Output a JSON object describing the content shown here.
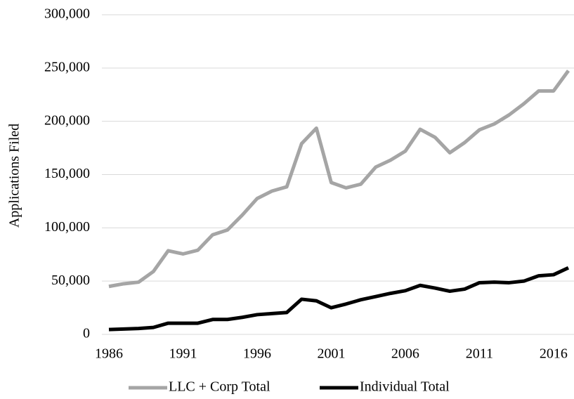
{
  "chart_data": {
    "type": "line",
    "y_label": "Applications Filed",
    "x": [
      1986,
      1987,
      1988,
      1989,
      1990,
      1991,
      1992,
      1993,
      1994,
      1995,
      1996,
      1997,
      1998,
      1999,
      2000,
      2001,
      2002,
      2003,
      2004,
      2005,
      2006,
      2007,
      2008,
      2009,
      2010,
      2011,
      2012,
      2013,
      2014,
      2015,
      2016,
      2017
    ],
    "series": [
      {
        "name": "LLC + Corp Total",
        "color": "#a5a5a5",
        "values": [
          45000,
          47500,
          49000,
          59000,
          78500,
          75500,
          79000,
          93500,
          98000,
          112000,
          127500,
          134500,
          138500,
          179000,
          193500,
          142500,
          137500,
          141000,
          157000,
          163500,
          172000,
          192500,
          185000,
          170500,
          180000,
          192000,
          197500,
          206000,
          216500,
          228500,
          228500,
          247500
        ]
      },
      {
        "name": "Individual Total",
        "color": "#000000",
        "values": [
          4500,
          5000,
          5500,
          6500,
          10500,
          10500,
          10500,
          14000,
          14000,
          16000,
          18500,
          19500,
          20500,
          33000,
          31500,
          25000,
          28500,
          32500,
          35500,
          38500,
          41000,
          46000,
          43500,
          40500,
          42500,
          48500,
          49000,
          48500,
          50000,
          55000,
          56000,
          62500
        ]
      }
    ],
    "xlim": [
      1986,
      2017
    ],
    "xticks": [
      1986,
      1991,
      1996,
      2001,
      2006,
      2011,
      2016
    ],
    "ylim": [
      0,
      300000
    ],
    "yticks": [
      0,
      {
        "value": 50000,
        "label": "50,000"
      },
      {
        "value": 100000,
        "label": "100,000"
      },
      {
        "value": 150000,
        "label": "150,000"
      },
      {
        "value": 200000,
        "label": "200,000"
      },
      {
        "value": 250000,
        "label": "250,000"
      },
      {
        "value": 300000,
        "label": "300,000"
      }
    ],
    "grid": true,
    "legend": "bottom"
  }
}
